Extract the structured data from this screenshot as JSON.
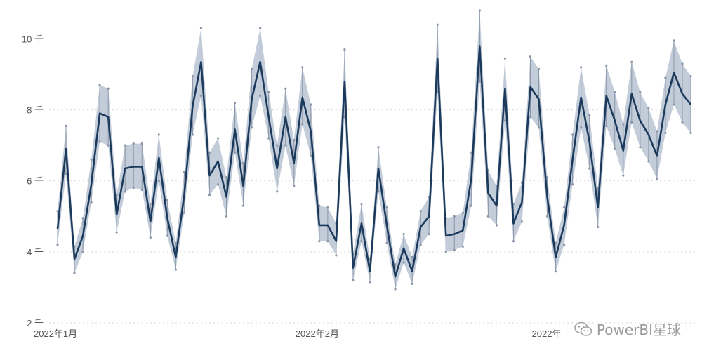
{
  "chart_data": {
    "type": "line",
    "title": "",
    "xlabel": "",
    "ylabel": "",
    "ylim": [
      2000,
      10800
    ],
    "yticks": [
      {
        "value": 2000,
        "label": "2 千"
      },
      {
        "value": 4000,
        "label": "4 千"
      },
      {
        "value": 6000,
        "label": "6 千"
      },
      {
        "value": 8000,
        "label": "8 千"
      },
      {
        "value": 10000,
        "label": "10 千"
      }
    ],
    "xticks": [
      {
        "index": 0,
        "label": "2022年1月"
      },
      {
        "index": 31,
        "label": "2022年2月"
      },
      {
        "index": 59,
        "label": "2022年"
      }
    ],
    "grid": true,
    "colors": {
      "line": "#1b3a5c",
      "band": "#b9c3d2",
      "whisker": "#8a96a8",
      "grid": "#d9d9d9",
      "axis_text": "#555555"
    },
    "series": [
      {
        "values": [
          4650,
          6900,
          3800,
          4450,
          5900,
          7900,
          7800,
          5050,
          6350,
          6400,
          6400,
          4850,
          6650,
          4950,
          3850,
          5600,
          8100,
          9350,
          6150,
          6550,
          5550,
          7450,
          5850,
          8300,
          9350,
          7800,
          6350,
          7800,
          6500,
          8350,
          7400,
          4750,
          4750,
          4300,
          8800,
          3550,
          4800,
          3450,
          6350,
          4750,
          3300,
          4100,
          3450,
          4700,
          5000,
          9450,
          4450,
          4500,
          4600,
          6050,
          9800,
          5650,
          5300,
          8600,
          4800,
          5400,
          8650,
          8300,
          5550,
          3850,
          4750,
          6600,
          8350,
          7100,
          5250,
          8400,
          7700,
          6850,
          8450,
          7700,
          7300,
          6700,
          8150,
          9050,
          8450,
          8150
        ],
        "lower": [
          4200,
          6200,
          3400,
          4000,
          5400,
          7100,
          7000,
          4550,
          5700,
          5800,
          5750,
          4400,
          6000,
          4450,
          3500,
          5100,
          7300,
          8400,
          5600,
          5900,
          5000,
          6800,
          5300,
          7500,
          8400,
          7200,
          5700,
          7000,
          5850,
          7600,
          6700,
          4300,
          4300,
          3900,
          7800,
          3200,
          4300,
          3150,
          5700,
          4250,
          2950,
          3700,
          3100,
          4200,
          4500,
          8500,
          4000,
          4050,
          4150,
          5300,
          8800,
          5000,
          4750,
          7700,
          4300,
          4850,
          7800,
          7500,
          5000,
          3450,
          4200,
          5900,
          7500,
          6350,
          4700,
          7550,
          6900,
          6150,
          7650,
          6950,
          6550,
          6050,
          7350,
          8150,
          7650,
          7350
        ],
        "upper": [
          5150,
          7550,
          4150,
          4950,
          6600,
          8700,
          8600,
          5600,
          7000,
          7050,
          7050,
          5350,
          7300,
          5450,
          4250,
          6250,
          8950,
          10300,
          6800,
          7200,
          6100,
          8200,
          6500,
          9150,
          10300,
          8500,
          7000,
          8600,
          7150,
          9200,
          8150,
          5300,
          5250,
          4800,
          9700,
          3950,
          5350,
          3800,
          6950,
          5250,
          3650,
          4500,
          3850,
          5150,
          5550,
          10400,
          4950,
          5000,
          5100,
          6800,
          10800,
          6300,
          5850,
          9450,
          5350,
          5950,
          9500,
          9150,
          6100,
          4250,
          5250,
          7300,
          9200,
          7850,
          5800,
          9250,
          8500,
          7600,
          9350,
          8500,
          8050,
          7400,
          8900,
          9950,
          9300,
          8950
        ]
      }
    ]
  },
  "watermark": {
    "text": "PowerBI星球",
    "icon": "wechat-icon"
  }
}
